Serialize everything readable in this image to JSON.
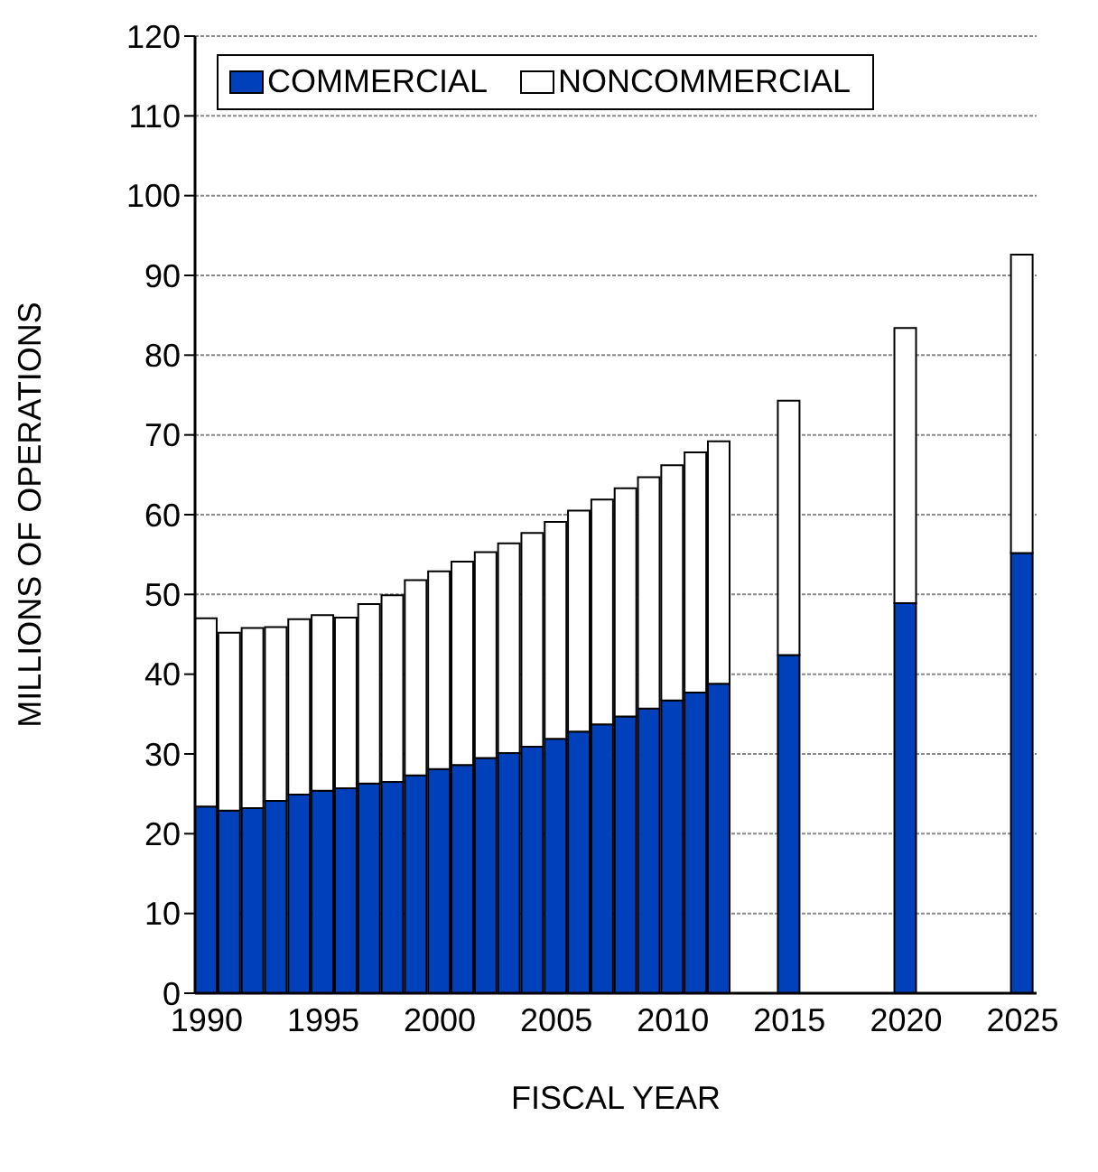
{
  "chart_data": {
    "type": "bar",
    "xlabel": "FISCAL YEAR",
    "ylabel": "MILLIONS OF OPERATIONS",
    "x": [
      1990,
      1991,
      1992,
      1993,
      1994,
      1995,
      1996,
      1997,
      1998,
      1999,
      2000,
      2001,
      2002,
      2003,
      2004,
      2005,
      2006,
      2007,
      2008,
      2009,
      2010,
      2011,
      2012,
      2015,
      2020,
      2025
    ],
    "series": [
      {
        "name": "COMMERCIAL",
        "color": "#0041bb",
        "values": [
          23.4,
          22.9,
          23.2,
          24.1,
          24.9,
          25.4,
          25.7,
          26.3,
          26.5,
          27.3,
          28.1,
          28.6,
          29.5,
          30.1,
          30.9,
          31.9,
          32.8,
          33.7,
          34.7,
          35.7,
          36.7,
          37.7,
          38.8,
          42.4,
          48.9,
          55.2
        ]
      },
      {
        "name": "NONCOMMERCIAL",
        "color": "#ffffff",
        "values": [
          23.6,
          22.3,
          22.6,
          21.8,
          22.0,
          22.0,
          21.4,
          22.5,
          23.4,
          24.5,
          24.8,
          25.5,
          25.8,
          26.3,
          26.8,
          27.2,
          27.7,
          28.2,
          28.6,
          29.0,
          29.5,
          30.1,
          30.4,
          31.9,
          34.5,
          37.4
        ]
      }
    ],
    "stacked": true,
    "xlim": [
      1989.5,
      2025.6
    ],
    "xticks": [
      1990,
      1995,
      2000,
      2005,
      2010,
      2015,
      2020,
      2025
    ],
    "ylim": [
      0,
      120
    ],
    "yticks": [
      0,
      10,
      20,
      30,
      40,
      50,
      60,
      70,
      80,
      90,
      100,
      110,
      120
    ],
    "grid": "y",
    "legend": "top left"
  }
}
